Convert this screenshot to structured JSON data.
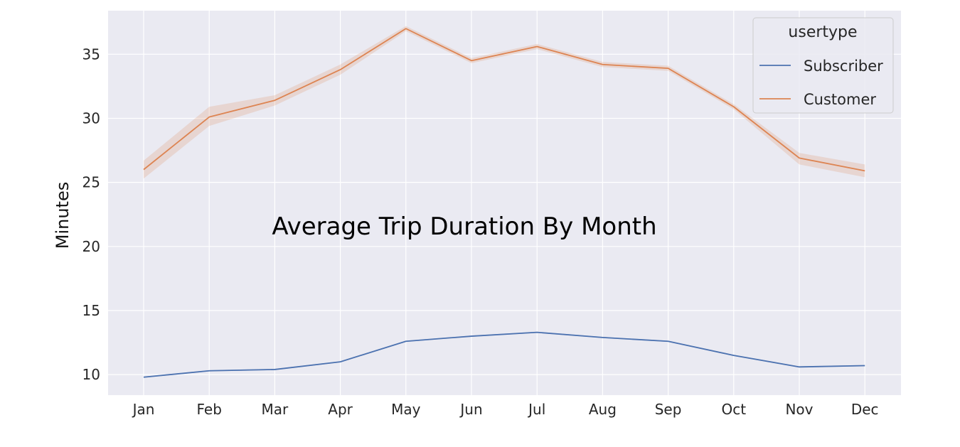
{
  "chart_data": {
    "type": "line",
    "title": "Average Trip Duration By Month",
    "xlabel": "",
    "ylabel": "Minutes",
    "categories": [
      "Jan",
      "Feb",
      "Mar",
      "Apr",
      "May",
      "Jun",
      "Jul",
      "Aug",
      "Sep",
      "Oct",
      "Nov",
      "Dec"
    ],
    "yticks": [
      10,
      15,
      20,
      25,
      30,
      35
    ],
    "ylim": [
      8.4,
      38.4
    ],
    "grid": true,
    "legend": {
      "title": "usertype",
      "placement": "top-right"
    },
    "series": [
      {
        "name": "Subscriber",
        "color": "#4c72b0",
        "values": [
          9.8,
          10.3,
          10.4,
          11.0,
          12.6,
          13.0,
          13.3,
          12.9,
          12.6,
          11.5,
          10.6,
          10.7
        ],
        "ci_lower": [
          9.75,
          10.25,
          10.35,
          10.95,
          12.55,
          12.95,
          13.25,
          12.85,
          12.55,
          11.45,
          10.55,
          10.65
        ],
        "ci_upper": [
          9.85,
          10.35,
          10.45,
          11.05,
          12.65,
          13.05,
          13.35,
          12.95,
          12.65,
          11.55,
          10.65,
          10.75
        ]
      },
      {
        "name": "Customer",
        "color": "#dd8452",
        "values": [
          26.0,
          30.1,
          31.4,
          33.8,
          37.0,
          34.5,
          35.6,
          34.2,
          33.9,
          30.9,
          26.9,
          25.9
        ],
        "ci_lower": [
          25.3,
          29.4,
          31.0,
          33.4,
          36.8,
          34.3,
          35.4,
          34.0,
          33.7,
          30.7,
          26.4,
          25.4
        ],
        "ci_upper": [
          26.7,
          30.9,
          31.8,
          34.2,
          37.2,
          34.7,
          35.8,
          34.4,
          34.1,
          31.1,
          27.3,
          26.4
        ]
      }
    ]
  }
}
